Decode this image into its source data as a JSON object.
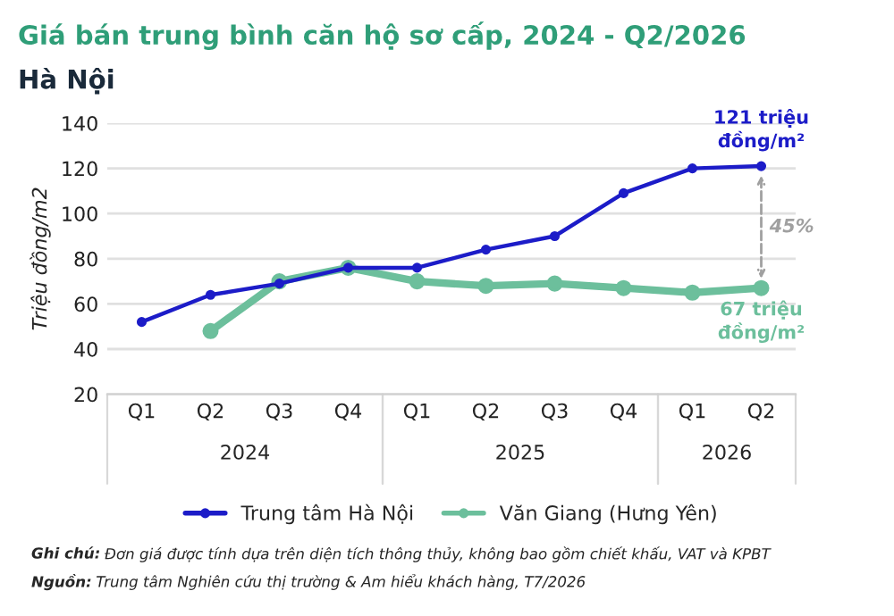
{
  "chart_data": {
    "type": "line",
    "title": "Giá bán trung bình căn hộ sơ cấp, 2024 - Q2/2026",
    "subtitle": "Hà Nội",
    "ylabel": "Triệu đồng/m2",
    "categories": [
      "Q1",
      "Q2",
      "Q3",
      "Q4",
      "Q1",
      "Q2",
      "Q3",
      "Q4",
      "Q1",
      "Q2"
    ],
    "series": [
      {
        "name": "Trung tâm Hà Nội",
        "color": "#1c1cc8",
        "values": [
          52,
          64,
          69,
          76,
          76,
          84,
          90,
          109,
          120,
          121
        ]
      },
      {
        "name": "Văn Giang (Hưng Yên)",
        "color": "#6cbf9c",
        "values": [
          null,
          48,
          70,
          76,
          70,
          68,
          69,
          67,
          65,
          67
        ]
      }
    ],
    "annotations": [
      "121 triệu\nđồng/m²",
      "45%",
      "67 triệu\nđồng/m²",
      "2024",
      "2025",
      "2026",
      "Ghi chú: Đơn giá được tính dựa trên diện tích thông thủy, không bao gồm chiết khấu, VAT và KPBT",
      "Nguồn: Trung tâm Nghiên cứu thị trường & Am hiểu khách hàng, T7/2026"
    ],
    "ylim": [
      20,
      140
    ],
    "yticks": [
      20,
      40,
      60,
      80,
      100,
      120,
      140
    ],
    "grid": "y",
    "legend": "bottom",
    "marker": "circle",
    "line_style": "solid"
  }
}
